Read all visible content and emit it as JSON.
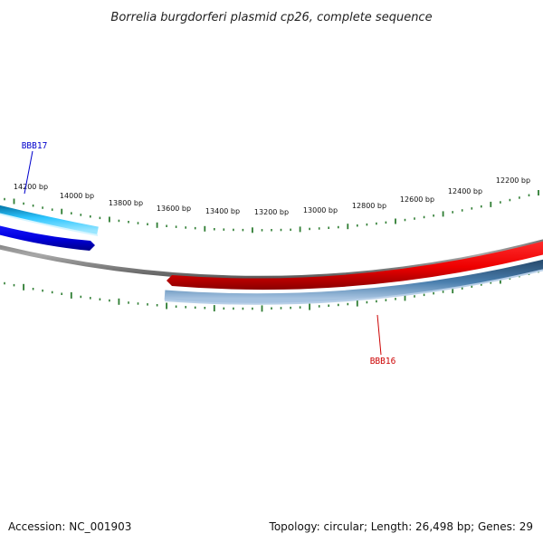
{
  "title": "Borrelia burgdorferi plasmid cp26, complete sequence",
  "footer": {
    "accession": "Accession: NC_001903",
    "summary": "Topology: circular; Length: 26,498 bp; Genes: 29"
  },
  "plasmid": {
    "length_bp": 26498,
    "topology": "circular",
    "gene_count": 29
  },
  "ruler": {
    "labels": [
      "14200 bp",
      "14000 bp",
      "13800 bp",
      "13600 bp",
      "13400 bp",
      "13200 bp",
      "13000 bp",
      "12800 bp",
      "12600 bp",
      "12400 bp",
      "12200 bp"
    ],
    "color": "#2e7d32"
  },
  "genes": [
    {
      "label": "BBB17",
      "strand": "forward",
      "label_color": "#0000cc",
      "fill": "#0000ee",
      "cds_fill": "#22b8e8"
    },
    {
      "label": "BBB16",
      "strand": "reverse",
      "label_color": "#cc0000",
      "fill": "#ee0000",
      "cds_fill": "#3f6f9c"
    }
  ],
  "colors": {
    "backbone": "#7f7f7f",
    "forward_gene": "#0000ee",
    "forward_cds": "#22b8e8",
    "reverse_gene": "#ee0000",
    "reverse_cds": "#3f6f9c",
    "ticks": "#2e7d32"
  }
}
